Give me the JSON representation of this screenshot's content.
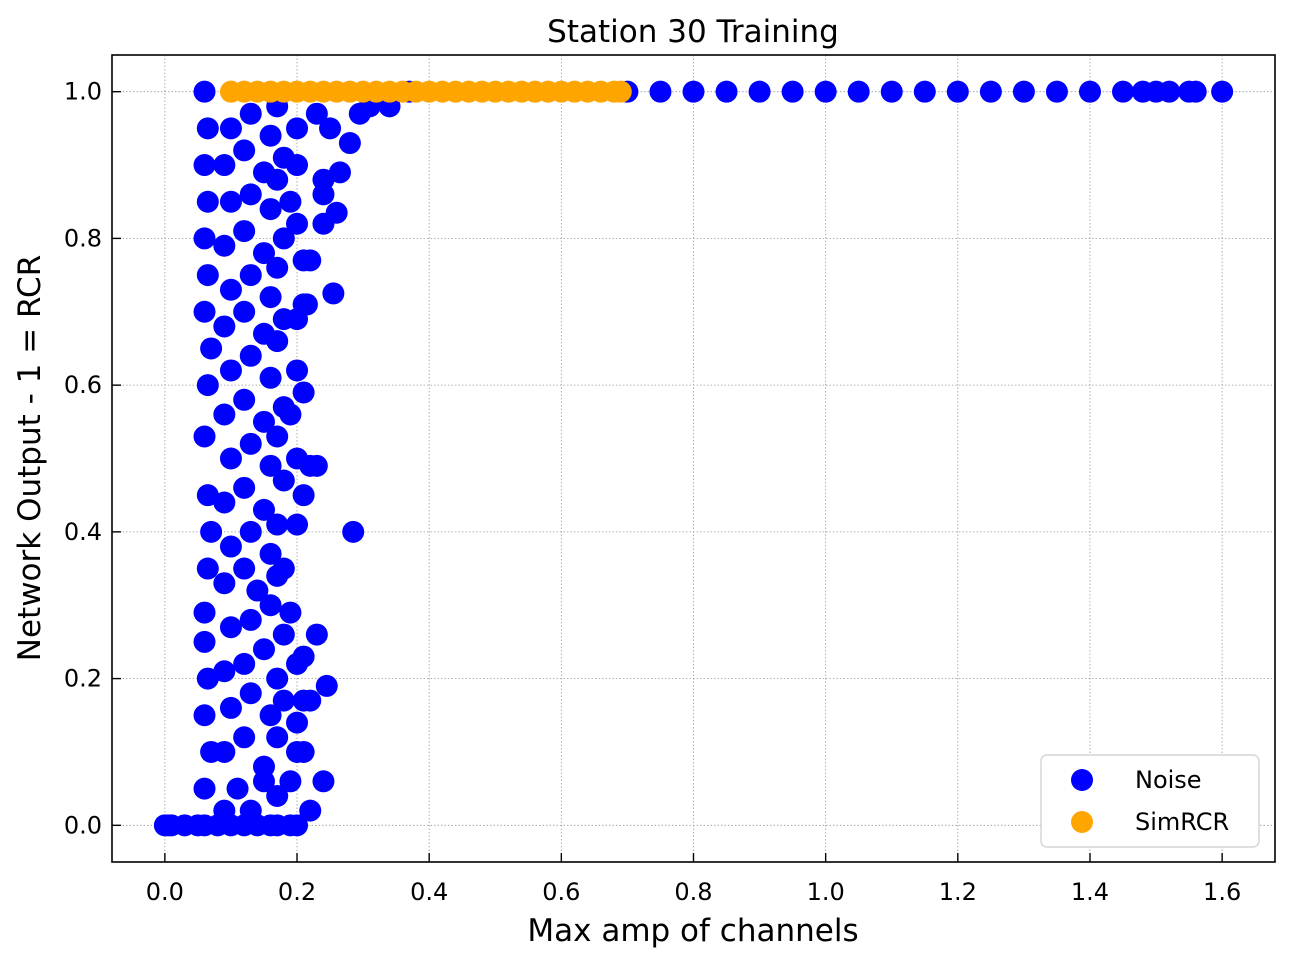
{
  "chart_data": {
    "type": "scatter",
    "title": "Station 30 Training",
    "xlabel": "Max amp of channels",
    "ylabel": "Network Output - 1 = RCR",
    "xlim": [
      -0.08,
      1.68
    ],
    "ylim": [
      -0.05,
      1.05
    ],
    "x_ticks": [
      "0.0",
      "0.2",
      "0.4",
      "0.6",
      "0.8",
      "1.0",
      "1.2",
      "1.4",
      "1.6"
    ],
    "y_ticks": [
      "0.0",
      "0.2",
      "0.4",
      "0.6",
      "0.8",
      "1.0"
    ],
    "grid": true,
    "legend_position": "lower right",
    "series": [
      {
        "name": "Noise",
        "color": "#0000ff",
        "points": [
          [
            0.0,
            0.0
          ],
          [
            0.005,
            0.0
          ],
          [
            0.01,
            0.0
          ],
          [
            0.03,
            0.0
          ],
          [
            0.05,
            0.0
          ],
          [
            0.06,
            0.0
          ],
          [
            0.08,
            0.0
          ],
          [
            0.1,
            0.0
          ],
          [
            0.12,
            0.0
          ],
          [
            0.14,
            0.0
          ],
          [
            0.16,
            0.0
          ],
          [
            0.17,
            0.0
          ],
          [
            0.2,
            0.0
          ],
          [
            0.06,
            0.05
          ],
          [
            0.07,
            0.1
          ],
          [
            0.06,
            0.15
          ],
          [
            0.065,
            0.2
          ],
          [
            0.06,
            0.25
          ],
          [
            0.06,
            0.29
          ],
          [
            0.065,
            0.35
          ],
          [
            0.07,
            0.4
          ],
          [
            0.065,
            0.45
          ],
          [
            0.06,
            0.53
          ],
          [
            0.065,
            0.6
          ],
          [
            0.07,
            0.65
          ],
          [
            0.06,
            0.7
          ],
          [
            0.065,
            0.75
          ],
          [
            0.06,
            0.8
          ],
          [
            0.065,
            0.85
          ],
          [
            0.06,
            0.9
          ],
          [
            0.065,
            0.95
          ],
          [
            0.06,
            1.0
          ],
          [
            0.09,
            0.02
          ],
          [
            0.11,
            0.05
          ],
          [
            0.13,
            0.02
          ],
          [
            0.15,
            0.06
          ],
          [
            0.17,
            0.04
          ],
          [
            0.09,
            0.1
          ],
          [
            0.12,
            0.12
          ],
          [
            0.15,
            0.08
          ],
          [
            0.17,
            0.12
          ],
          [
            0.1,
            0.16
          ],
          [
            0.13,
            0.18
          ],
          [
            0.16,
            0.15
          ],
          [
            0.18,
            0.17
          ],
          [
            0.09,
            0.21
          ],
          [
            0.12,
            0.22
          ],
          [
            0.15,
            0.24
          ],
          [
            0.17,
            0.2
          ],
          [
            0.1,
            0.27
          ],
          [
            0.13,
            0.28
          ],
          [
            0.16,
            0.3
          ],
          [
            0.18,
            0.26
          ],
          [
            0.09,
            0.33
          ],
          [
            0.12,
            0.35
          ],
          [
            0.14,
            0.32
          ],
          [
            0.17,
            0.34
          ],
          [
            0.1,
            0.38
          ],
          [
            0.13,
            0.4
          ],
          [
            0.16,
            0.37
          ],
          [
            0.17,
            0.41
          ],
          [
            0.09,
            0.44
          ],
          [
            0.12,
            0.46
          ],
          [
            0.15,
            0.43
          ],
          [
            0.18,
            0.47
          ],
          [
            0.1,
            0.5
          ],
          [
            0.13,
            0.52
          ],
          [
            0.16,
            0.49
          ],
          [
            0.17,
            0.53
          ],
          [
            0.09,
            0.56
          ],
          [
            0.12,
            0.58
          ],
          [
            0.15,
            0.55
          ],
          [
            0.18,
            0.57
          ],
          [
            0.1,
            0.62
          ],
          [
            0.13,
            0.64
          ],
          [
            0.16,
            0.61
          ],
          [
            0.17,
            0.66
          ],
          [
            0.09,
            0.68
          ],
          [
            0.12,
            0.7
          ],
          [
            0.15,
            0.67
          ],
          [
            0.18,
            0.69
          ],
          [
            0.1,
            0.73
          ],
          [
            0.13,
            0.75
          ],
          [
            0.16,
            0.72
          ],
          [
            0.17,
            0.76
          ],
          [
            0.09,
            0.79
          ],
          [
            0.12,
            0.81
          ],
          [
            0.15,
            0.78
          ],
          [
            0.18,
            0.8
          ],
          [
            0.1,
            0.85
          ],
          [
            0.13,
            0.86
          ],
          [
            0.16,
            0.84
          ],
          [
            0.17,
            0.88
          ],
          [
            0.09,
            0.9
          ],
          [
            0.12,
            0.92
          ],
          [
            0.15,
            0.89
          ],
          [
            0.18,
            0.91
          ],
          [
            0.1,
            0.95
          ],
          [
            0.13,
            0.97
          ],
          [
            0.16,
            0.94
          ],
          [
            0.17,
            0.98
          ],
          [
            0.19,
            0.0
          ],
          [
            0.19,
            0.06
          ],
          [
            0.2,
            0.1
          ],
          [
            0.2,
            0.14
          ],
          [
            0.21,
            0.17
          ],
          [
            0.2,
            0.22
          ],
          [
            0.19,
            0.29
          ],
          [
            0.18,
            0.35
          ],
          [
            0.2,
            0.41
          ],
          [
            0.21,
            0.45
          ],
          [
            0.2,
            0.5
          ],
          [
            0.19,
            0.56
          ],
          [
            0.2,
            0.62
          ],
          [
            0.2,
            0.69
          ],
          [
            0.21,
            0.71
          ],
          [
            0.21,
            0.77
          ],
          [
            0.2,
            0.82
          ],
          [
            0.19,
            0.85
          ],
          [
            0.2,
            0.9
          ],
          [
            0.2,
            0.95
          ],
          [
            0.22,
            0.02
          ],
          [
            0.24,
            0.06
          ],
          [
            0.21,
            0.1
          ],
          [
            0.22,
            0.17
          ],
          [
            0.21,
            0.23
          ],
          [
            0.23,
            0.26
          ],
          [
            0.245,
            0.19
          ],
          [
            0.22,
            0.49
          ],
          [
            0.23,
            0.49
          ],
          [
            0.21,
            0.59
          ],
          [
            0.215,
            0.71
          ],
          [
            0.22,
            0.77
          ],
          [
            0.24,
            0.82
          ],
          [
            0.26,
            0.835
          ],
          [
            0.255,
            0.725
          ],
          [
            0.285,
            0.4
          ],
          [
            0.24,
            0.86
          ],
          [
            0.265,
            0.89
          ],
          [
            0.24,
            0.88
          ],
          [
            0.28,
            0.93
          ],
          [
            0.295,
            0.97
          ],
          [
            0.31,
            0.98
          ],
          [
            0.23,
            0.97
          ],
          [
            0.25,
            0.95
          ],
          [
            0.34,
            0.98
          ],
          [
            0.37,
            1.0
          ],
          [
            0.7,
            1.0
          ],
          [
            0.75,
            1.0
          ],
          [
            0.8,
            1.0
          ],
          [
            0.85,
            1.0
          ],
          [
            0.9,
            1.0
          ],
          [
            0.95,
            1.0
          ],
          [
            1.0,
            1.0
          ],
          [
            1.05,
            1.0
          ],
          [
            1.1,
            1.0
          ],
          [
            1.15,
            1.0
          ],
          [
            1.2,
            1.0
          ],
          [
            1.25,
            1.0
          ],
          [
            1.3,
            1.0
          ],
          [
            1.35,
            1.0
          ],
          [
            1.4,
            1.0
          ],
          [
            1.45,
            1.0
          ],
          [
            1.48,
            1.0
          ],
          [
            1.5,
            1.0
          ],
          [
            1.52,
            1.0
          ],
          [
            1.55,
            1.0
          ],
          [
            1.56,
            1.0
          ],
          [
            1.6,
            1.0
          ]
        ]
      },
      {
        "name": "SimRCR",
        "color": "#ffa500",
        "points": [
          [
            0.1,
            1.0
          ],
          [
            0.12,
            1.0
          ],
          [
            0.14,
            1.0
          ],
          [
            0.16,
            1.0
          ],
          [
            0.18,
            1.0
          ],
          [
            0.2,
            1.0
          ],
          [
            0.22,
            1.0
          ],
          [
            0.24,
            1.0
          ],
          [
            0.26,
            1.0
          ],
          [
            0.28,
            1.0
          ],
          [
            0.3,
            1.0
          ],
          [
            0.32,
            1.0
          ],
          [
            0.34,
            1.0
          ],
          [
            0.36,
            1.0
          ],
          [
            0.38,
            1.0
          ],
          [
            0.4,
            1.0
          ],
          [
            0.42,
            1.0
          ],
          [
            0.44,
            1.0
          ],
          [
            0.46,
            1.0
          ],
          [
            0.48,
            1.0
          ],
          [
            0.5,
            1.0
          ],
          [
            0.52,
            1.0
          ],
          [
            0.54,
            1.0
          ],
          [
            0.56,
            1.0
          ],
          [
            0.58,
            1.0
          ],
          [
            0.6,
            1.0
          ],
          [
            0.62,
            1.0
          ],
          [
            0.64,
            1.0
          ],
          [
            0.66,
            1.0
          ],
          [
            0.68,
            1.0
          ],
          [
            0.69,
            1.0
          ]
        ]
      }
    ]
  }
}
